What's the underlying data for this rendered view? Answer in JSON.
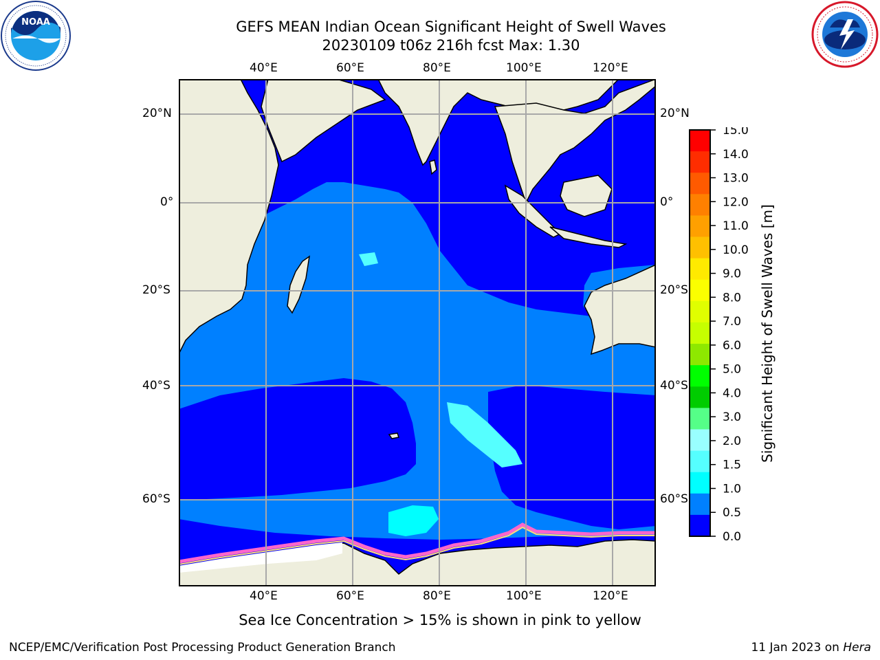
{
  "header": {
    "title_line1": "GEFS MEAN Indian Ocean Significant Height of Swell Waves",
    "title_line2": "20230109 t06z 216h fcst   Max: 1.30"
  },
  "logos": {
    "left": {
      "icon": "noaa-logo",
      "text": "NOAA",
      "ring_text": "NATIONAL OCEANIC AND ATMOSPHERIC ADMINISTRATION · U.S. DEPARTMENT OF COMMERCE"
    },
    "right": {
      "icon": "nws-logo",
      "ring_text": "NATIONAL WEATHER SERVICE"
    }
  },
  "map": {
    "lon_labels_top": [
      "40°E",
      "60°E",
      "80°E",
      "100°E",
      "120°E"
    ],
    "lon_labels_bottom": [
      "40°E",
      "60°E",
      "80°E",
      "100°E",
      "120°E"
    ],
    "lat_labels_left": [
      "20°N",
      "0°",
      "20°S",
      "40°S",
      "60°S"
    ],
    "lat_labels_right": [
      "20°N",
      "0°",
      "20°S",
      "40°S",
      "60°S"
    ],
    "lon_range_deg": [
      20,
      130
    ],
    "lat_range_deg": [
      -75,
      27
    ],
    "grid": true,
    "colors": {
      "land": "#eeeedd",
      "coastline": "#000000",
      "gridline": "#a8a8a8",
      "low_swell": "#0000ff",
      "mid_swell": "#0080ff",
      "high_swell": "#00ffff",
      "sea_ice": "#ff66cc"
    }
  },
  "colorbar": {
    "label": "Significant Height of Swell Waves [m]",
    "ticks": [
      "15.0",
      "14.0",
      "13.0",
      "12.0",
      "11.0",
      "10.0",
      "9.0",
      "8.0",
      "7.0",
      "6.0",
      "5.0",
      "4.0",
      "3.0",
      "2.0",
      "1.5",
      "1.0",
      "0.5",
      "0.0"
    ],
    "colors_top_to_bottom": [
      "#ff0000",
      "#ff2d00",
      "#ff5a00",
      "#ff8000",
      "#ffa000",
      "#ffc000",
      "#ffea00",
      "#fbff00",
      "#e0ff00",
      "#c6ff00",
      "#8ee800",
      "#00ff00",
      "#00cc00",
      "#55ff88",
      "#99ffff",
      "#55ffff",
      "#00ffff",
      "#0080ff",
      "#0000ff"
    ]
  },
  "caption": "Sea Ice Concentration > 15% is shown in pink to yellow",
  "footer": {
    "left": "NCEP/EMC/Verification Post Processing Product Generation Branch",
    "date": "11 Jan 2023 on ",
    "machine": "Hera"
  }
}
